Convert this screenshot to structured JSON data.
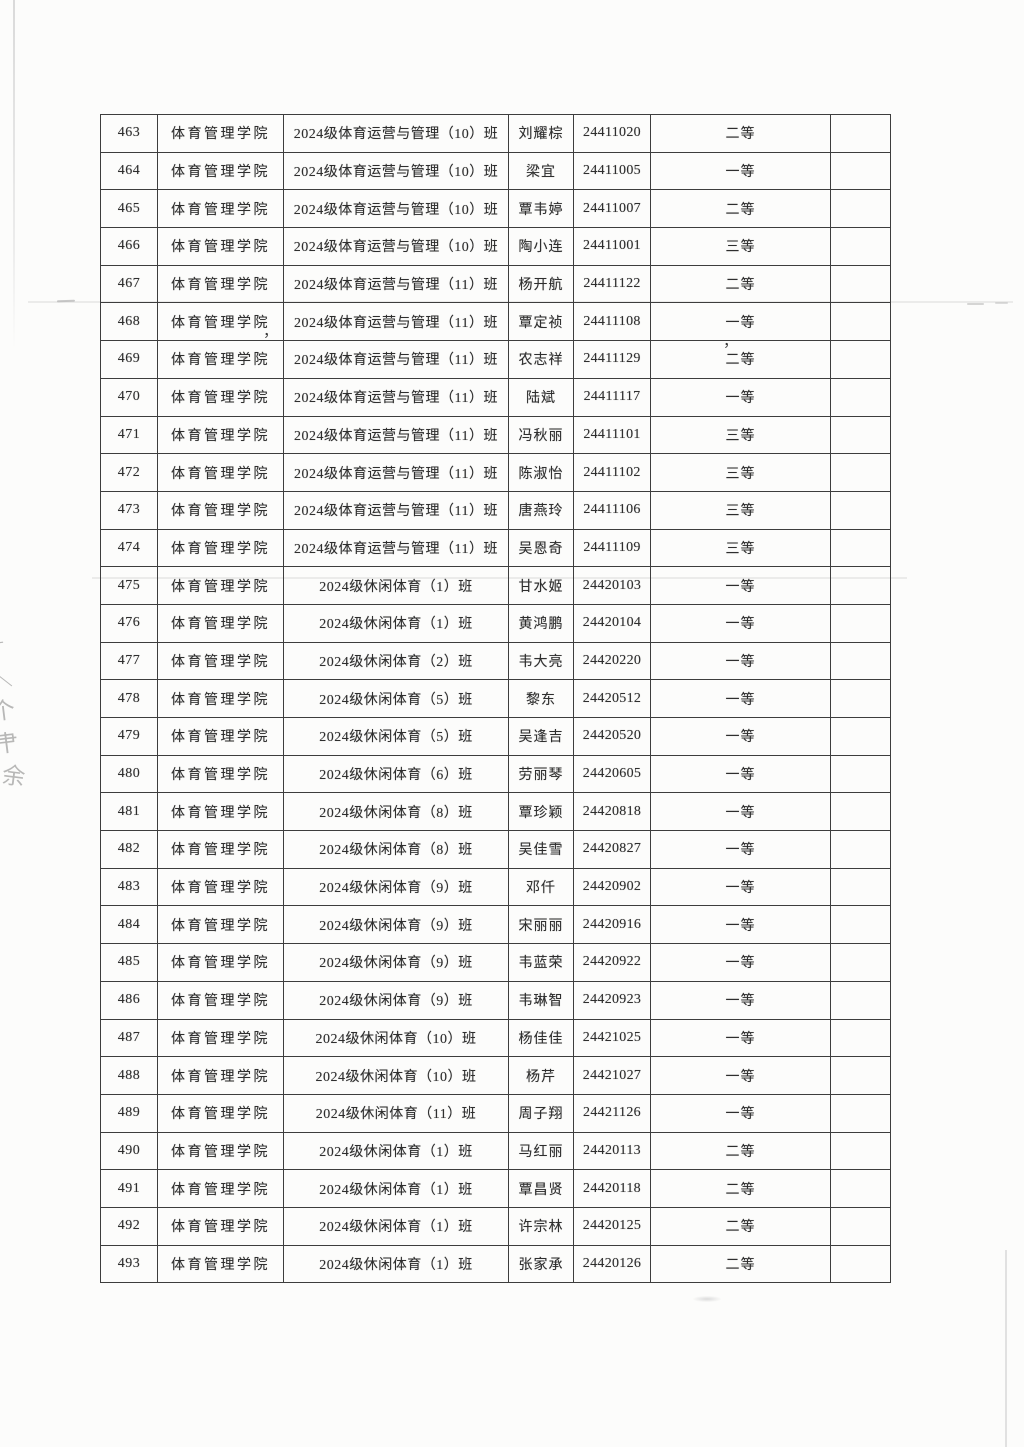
{
  "table": {
    "column_names": [
      "row_number",
      "college",
      "class_name",
      "student_name",
      "student_id",
      "award_level",
      "blank"
    ],
    "rows": [
      {
        "no": "463",
        "college": "体育管理学院",
        "class_name": "2024级体育运营与管理（10）班",
        "name": "刘耀棕",
        "id": "24411020",
        "award": "二等"
      },
      {
        "no": "464",
        "college": "体育管理学院",
        "class_name": "2024级体育运营与管理（10）班",
        "name": "梁宜",
        "id": "24411005",
        "award": "一等"
      },
      {
        "no": "465",
        "college": "体育管理学院",
        "class_name": "2024级体育运营与管理（10）班",
        "name": "覃韦婷",
        "id": "24411007",
        "award": "二等"
      },
      {
        "no": "466",
        "college": "体育管理学院",
        "class_name": "2024级体育运营与管理（10）班",
        "name": "陶小连",
        "id": "24411001",
        "award": "三等"
      },
      {
        "no": "467",
        "college": "体育管理学院",
        "class_name": "2024级体育运营与管理（11）班",
        "name": "杨开航",
        "id": "24411122",
        "award": "二等"
      },
      {
        "no": "468",
        "college": "体育管理学院",
        "class_name": "2024级体育运营与管理（11）班",
        "name": "覃定祯",
        "id": "24411108",
        "award": "一等"
      },
      {
        "no": "469",
        "college": "体育管理学院",
        "class_name": "2024级体育运营与管理（11）班",
        "name": "农志祥",
        "id": "24411129",
        "award": "二等"
      },
      {
        "no": "470",
        "college": "体育管理学院",
        "class_name": "2024级体育运营与管理（11）班",
        "name": "陆斌",
        "id": "24411117",
        "award": "一等"
      },
      {
        "no": "471",
        "college": "体育管理学院",
        "class_name": "2024级体育运营与管理（11）班",
        "name": "冯秋丽",
        "id": "24411101",
        "award": "三等"
      },
      {
        "no": "472",
        "college": "体育管理学院",
        "class_name": "2024级体育运营与管理（11）班",
        "name": "陈淑怡",
        "id": "24411102",
        "award": "三等"
      },
      {
        "no": "473",
        "college": "体育管理学院",
        "class_name": "2024级体育运营与管理（11）班",
        "name": "唐燕玲",
        "id": "24411106",
        "award": "三等"
      },
      {
        "no": "474",
        "college": "体育管理学院",
        "class_name": "2024级体育运营与管理（11）班",
        "name": "吴恩奇",
        "id": "24411109",
        "award": "三等"
      },
      {
        "no": "475",
        "college": "体育管理学院",
        "class_name": "2024级休闲体育（1）班",
        "name": "甘水姬",
        "id": "24420103",
        "award": "一等"
      },
      {
        "no": "476",
        "college": "体育管理学院",
        "class_name": "2024级休闲体育（1）班",
        "name": "黄鸿鹏",
        "id": "24420104",
        "award": "一等"
      },
      {
        "no": "477",
        "college": "体育管理学院",
        "class_name": "2024级休闲体育（2）班",
        "name": "韦大亮",
        "id": "24420220",
        "award": "一等"
      },
      {
        "no": "478",
        "college": "体育管理学院",
        "class_name": "2024级休闲体育（5）班",
        "name": "黎东",
        "id": "24420512",
        "award": "一等"
      },
      {
        "no": "479",
        "college": "体育管理学院",
        "class_name": "2024级休闲体育（5）班",
        "name": "吴逢吉",
        "id": "24420520",
        "award": "一等"
      },
      {
        "no": "480",
        "college": "体育管理学院",
        "class_name": "2024级休闲体育（6）班",
        "name": "劳丽琴",
        "id": "24420605",
        "award": "一等"
      },
      {
        "no": "481",
        "college": "体育管理学院",
        "class_name": "2024级休闲体育（8）班",
        "name": "覃珍颖",
        "id": "24420818",
        "award": "一等"
      },
      {
        "no": "482",
        "college": "体育管理学院",
        "class_name": "2024级休闲体育（8）班",
        "name": "吴佳雪",
        "id": "24420827",
        "award": "一等"
      },
      {
        "no": "483",
        "college": "体育管理学院",
        "class_name": "2024级休闲体育（9）班",
        "name": "邓仟",
        "id": "24420902",
        "award": "一等"
      },
      {
        "no": "484",
        "college": "体育管理学院",
        "class_name": "2024级休闲体育（9）班",
        "name": "宋丽丽",
        "id": "24420916",
        "award": "一等"
      },
      {
        "no": "485",
        "college": "体育管理学院",
        "class_name": "2024级休闲体育（9）班",
        "name": "韦蓝荣",
        "id": "24420922",
        "award": "一等"
      },
      {
        "no": "486",
        "college": "体育管理学院",
        "class_name": "2024级休闲体育（9）班",
        "name": "韦琳智",
        "id": "24420923",
        "award": "一等"
      },
      {
        "no": "487",
        "college": "体育管理学院",
        "class_name": "2024级休闲体育（10）班",
        "name": "杨佳佳",
        "id": "24421025",
        "award": "一等"
      },
      {
        "no": "488",
        "college": "体育管理学院",
        "class_name": "2024级休闲体育（10）班",
        "name": "杨芹",
        "id": "24421027",
        "award": "一等"
      },
      {
        "no": "489",
        "college": "体育管理学院",
        "class_name": "2024级休闲体育（11）班",
        "name": "周子翔",
        "id": "24421126",
        "award": "一等"
      },
      {
        "no": "490",
        "college": "体育管理学院",
        "class_name": "2024级休闲体育（1）班",
        "name": "马红丽",
        "id": "24420113",
        "award": "二等"
      },
      {
        "no": "491",
        "college": "体育管理学院",
        "class_name": "2024级休闲体育（1）班",
        "name": "覃昌贤",
        "id": "24420118",
        "award": "二等"
      },
      {
        "no": "492",
        "college": "体育管理学院",
        "class_name": "2024级休闲体育（1）班",
        "name": "许宗林",
        "id": "24420125",
        "award": "二等"
      },
      {
        "no": "493",
        "college": "体育管理学院",
        "class_name": "2024级休闲体育（1）班",
        "name": "张家承",
        "id": "24420126",
        "award": "二等"
      }
    ]
  },
  "artifacts": {
    "stray_commas": [
      "，",
      "，"
    ],
    "margin_marks": [
      "一",
      "＼",
      "个",
      "肀",
      "余"
    ]
  },
  "colors": {
    "paper": "#fcfcfb",
    "grid_line": "#3d3d3d",
    "text": "#2e2e2e",
    "faint_mark": "#8f8f8f"
  }
}
